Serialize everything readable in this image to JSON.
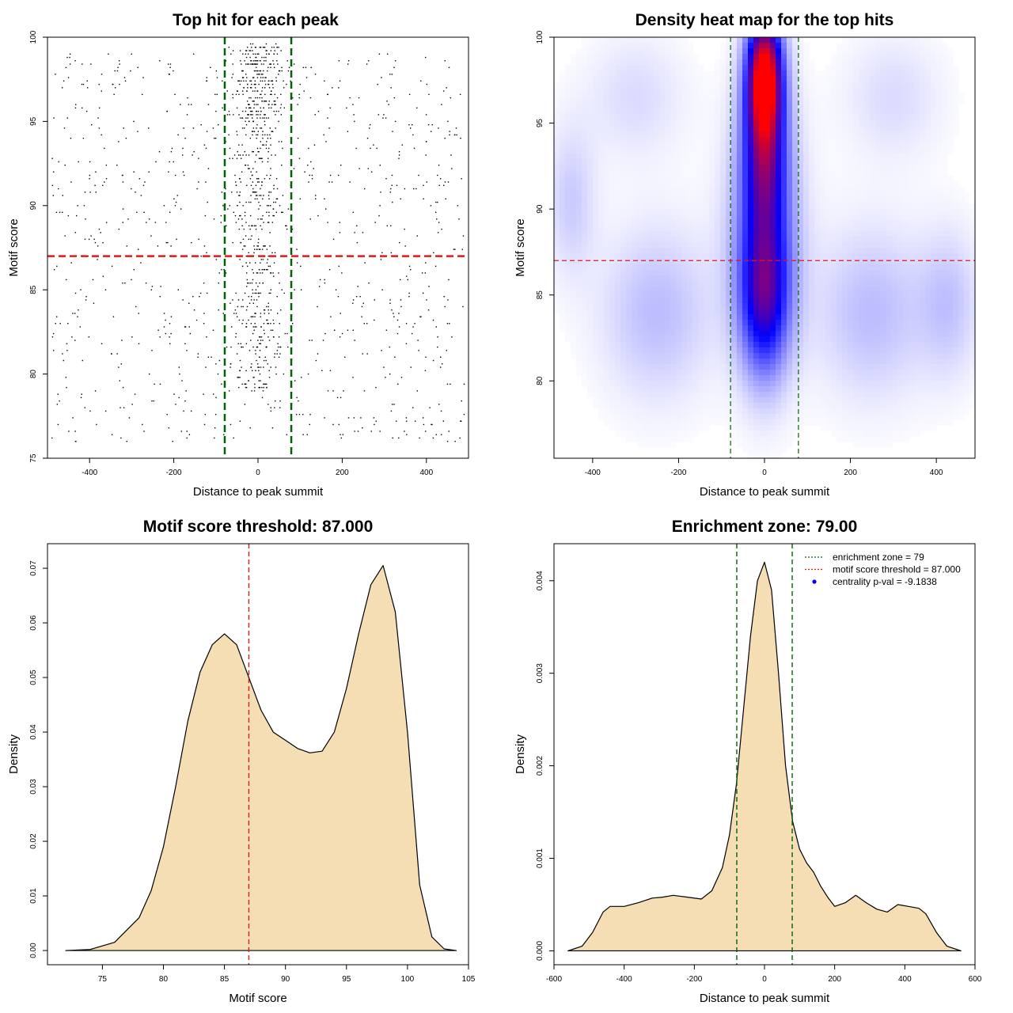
{
  "chart_data": [
    {
      "type": "scatter",
      "title": "Top hit for each peak",
      "xlabel": "Distance to peak summit",
      "ylabel": "Motif score",
      "xlim": [
        -500,
        500
      ],
      "ylim": [
        75,
        100
      ],
      "xticks": [
        "-400",
        "-200",
        "0",
        "200",
        "400"
      ],
      "yticks": [
        "75",
        "80",
        "85",
        "90",
        "95",
        "100"
      ],
      "hlines": [
        {
          "y": 87,
          "color": "#e0191b",
          "style": "dashed"
        }
      ],
      "vlines": [
        {
          "x": -79,
          "color": "#006400",
          "style": "dashed"
        },
        {
          "x": 79,
          "color": "#006400",
          "style": "dashed"
        }
      ],
      "point_color": "#000000",
      "distribution_note_points": 1600
    },
    {
      "type": "heatmap",
      "title": "Density heat map for the top hits",
      "xlabel": "Distance to peak summit",
      "ylabel": "Motif score",
      "xlim": [
        -490,
        490
      ],
      "ylim": [
        75.5,
        100
      ],
      "xticks": [
        "-400",
        "-200",
        "0",
        "200",
        "400"
      ],
      "yticks": [
        "80",
        "85",
        "90",
        "95",
        "100"
      ],
      "hlines": [
        {
          "y": 87,
          "color": "#e0191b",
          "style": "dashed"
        }
      ],
      "vlines": [
        {
          "x": -79,
          "color": "#006400",
          "style": "dashed"
        },
        {
          "x": 79,
          "color": "#006400",
          "style": "dashed"
        }
      ],
      "colors": {
        "low": "#ffffff",
        "mid": "#0000ff",
        "high": "#ff0000"
      },
      "hotspots": [
        {
          "x": 0,
          "y": 97.8,
          "sx": 28,
          "sy": 2.4,
          "w": 1.0
        },
        {
          "x": 0,
          "y": 93.0,
          "sx": 35,
          "sy": 3.2,
          "w": 0.55
        },
        {
          "x": 0,
          "y": 85.0,
          "sx": 40,
          "sy": 3.2,
          "w": 0.55
        },
        {
          "x": 0,
          "y": 89.0,
          "sx": 60,
          "sy": 5.0,
          "w": 0.2
        },
        {
          "x": -250,
          "y": 84.0,
          "sx": 90,
          "sy": 3.5,
          "w": 0.13
        },
        {
          "x": 250,
          "y": 84.0,
          "sx": 90,
          "sy": 3.5,
          "w": 0.13
        },
        {
          "x": -450,
          "y": 90.5,
          "sx": 40,
          "sy": 3.0,
          "w": 0.1
        },
        {
          "x": 430,
          "y": 84.5,
          "sx": 50,
          "sy": 3.0,
          "w": 0.11
        },
        {
          "x": -300,
          "y": 96.5,
          "sx": 80,
          "sy": 2.5,
          "w": 0.07
        },
        {
          "x": 300,
          "y": 96.5,
          "sx": 80,
          "sy": 2.5,
          "w": 0.07
        }
      ]
    },
    {
      "type": "area",
      "title": "Motif score threshold: 87.000",
      "xlabel": "Motif score",
      "ylabel": "Density",
      "xlim": [
        70.5,
        105
      ],
      "ylim": [
        -0.0026,
        0.0745
      ],
      "xticks": [
        "75",
        "80",
        "85",
        "90",
        "95",
        "100",
        "105"
      ],
      "yticks": [
        "0.00",
        "0.01",
        "0.02",
        "0.03",
        "0.04",
        "0.05",
        "0.06",
        "0.07"
      ],
      "fill": "#f5deb3",
      "vlines": [
        {
          "x": 87,
          "color": "#e0191b",
          "style": "dashed"
        }
      ],
      "x": [
        72,
        74,
        76,
        78,
        79,
        80,
        81,
        82,
        83,
        84,
        85,
        86,
        87,
        88,
        89,
        90,
        91,
        92,
        93,
        94,
        95,
        96,
        97,
        98,
        99,
        100,
        101,
        102,
        103,
        104
      ],
      "y": [
        0,
        0.0002,
        0.0015,
        0.006,
        0.011,
        0.019,
        0.03,
        0.042,
        0.051,
        0.056,
        0.058,
        0.056,
        0.05,
        0.044,
        0.04,
        0.0385,
        0.037,
        0.0362,
        0.0365,
        0.04,
        0.048,
        0.058,
        0.067,
        0.0705,
        0.062,
        0.04,
        0.012,
        0.0025,
        0.0003,
        0
      ]
    },
    {
      "type": "area",
      "title": "Enrichment zone: 79.00",
      "xlabel": "Distance to peak summit",
      "ylabel": "Density",
      "xlim": [
        -600,
        600
      ],
      "ylim": [
        -0.00015,
        0.0044
      ],
      "xticks": [
        "-600",
        "-400",
        "-200",
        "0",
        "200",
        "400",
        "600"
      ],
      "yticks": [
        "0.000",
        "0.001",
        "0.002",
        "0.003",
        "0.004"
      ],
      "fill": "#f5deb3",
      "vlines": [
        {
          "x": -79,
          "color": "#006400",
          "style": "dashed"
        },
        {
          "x": 79,
          "color": "#006400",
          "style": "dashed"
        }
      ],
      "x": [
        -560,
        -520,
        -490,
        -460,
        -440,
        -400,
        -360,
        -320,
        -290,
        -260,
        -220,
        -180,
        -150,
        -120,
        -100,
        -80,
        -60,
        -40,
        -20,
        0,
        20,
        40,
        60,
        80,
        100,
        120,
        140,
        160,
        180,
        200,
        230,
        260,
        290,
        320,
        350,
        380,
        410,
        440,
        460,
        490,
        520,
        560
      ],
      "y": [
        0,
        5e-05,
        0.0002,
        0.00042,
        0.00048,
        0.00048,
        0.00052,
        0.00057,
        0.00058,
        0.0006,
        0.00058,
        0.00056,
        0.00065,
        0.0009,
        0.00125,
        0.0018,
        0.0026,
        0.0034,
        0.004,
        0.0042,
        0.0039,
        0.003,
        0.002,
        0.0014,
        0.0011,
        0.00095,
        0.00085,
        0.0007,
        0.00058,
        0.00048,
        0.00052,
        0.0006,
        0.00052,
        0.00045,
        0.00042,
        0.0005,
        0.00048,
        0.00046,
        0.0004,
        0.0002,
        5e-05,
        0
      ],
      "legend": {
        "position": "top-right",
        "entries": [
          {
            "label": "enrichment zone = 79",
            "color": "#006400",
            "style": "dotted-line"
          },
          {
            "label": "motif score threshold = 87.000",
            "color": "#e0191b",
            "style": "dotted-line"
          },
          {
            "label": "centrality p-val = -9.1838",
            "color": "#0000ff",
            "style": "point"
          }
        ]
      }
    }
  ]
}
